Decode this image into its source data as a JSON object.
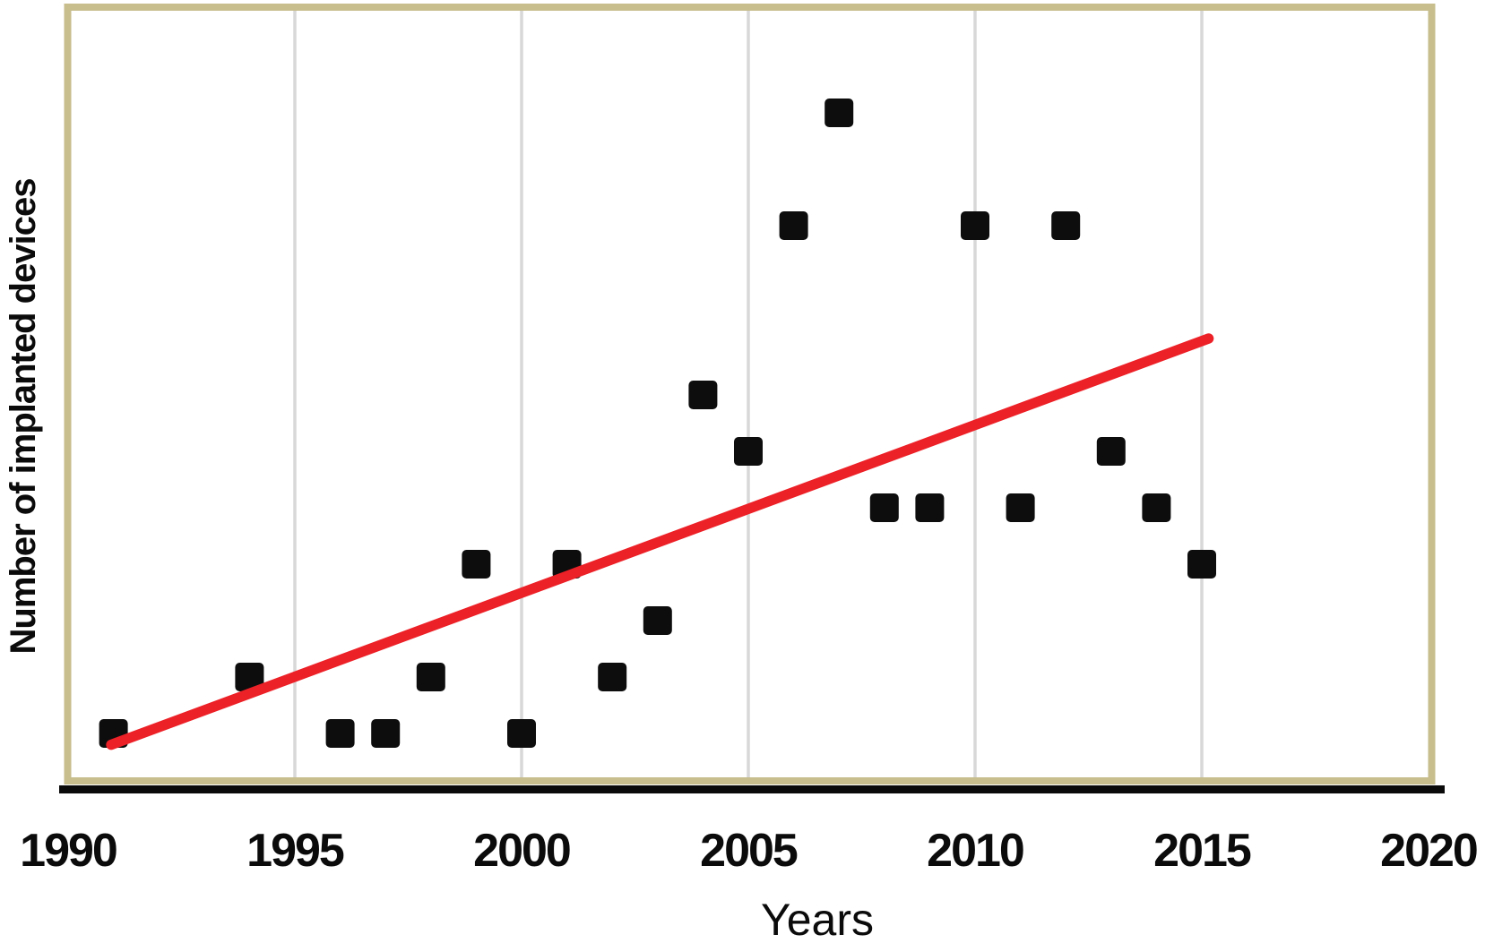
{
  "chart_data": {
    "type": "scatter",
    "title": "",
    "xlabel": "Years",
    "ylabel": "Number of implanted devices",
    "x_ticks": [
      "1990",
      "1995",
      "2000",
      "2005",
      "2010",
      "2015",
      "2020"
    ],
    "grid_years": [
      1995,
      2000,
      2005,
      2010,
      2015
    ],
    "xlim": [
      1990,
      2020
    ],
    "ylim": [
      0,
      13.8
    ],
    "y_ticks_visible": false,
    "grid": "vertical-only",
    "legend_position": "none",
    "series": [
      {
        "name": "implanted-devices-per-year",
        "marker": "square",
        "color": "#0d0d0d",
        "points": [
          {
            "year": 1991,
            "value": 1
          },
          {
            "year": 1994,
            "value": 2
          },
          {
            "year": 1996,
            "value": 1
          },
          {
            "year": 1997,
            "value": 1
          },
          {
            "year": 1998,
            "value": 2
          },
          {
            "year": 1999,
            "value": 4
          },
          {
            "year": 2000,
            "value": 1
          },
          {
            "year": 2001,
            "value": 4
          },
          {
            "year": 2002,
            "value": 2
          },
          {
            "year": 2003,
            "value": 3
          },
          {
            "year": 2004,
            "value": 7
          },
          {
            "year": 2005,
            "value": 6
          },
          {
            "year": 2006,
            "value": 10
          },
          {
            "year": 2007,
            "value": 12
          },
          {
            "year": 2008,
            "value": 5
          },
          {
            "year": 2009,
            "value": 5
          },
          {
            "year": 2010,
            "value": 10
          },
          {
            "year": 2011,
            "value": 5
          },
          {
            "year": 2012,
            "value": 10
          },
          {
            "year": 2013,
            "value": 6
          },
          {
            "year": 2014,
            "value": 5
          },
          {
            "year": 2015,
            "value": 4
          }
        ]
      }
    ],
    "trend_line": {
      "name": "linear-trend",
      "color": "#ec2027",
      "x1": 1990.95,
      "y1": 0.8,
      "x2": 2015.15,
      "y2": 8.0
    },
    "style": {
      "frame_color": "#c7bd8d",
      "grid_color": "#d8d8d8",
      "axis_color": "#0a0a0a",
      "text_color": "#0b0b0b",
      "background": "#ffffff"
    }
  }
}
